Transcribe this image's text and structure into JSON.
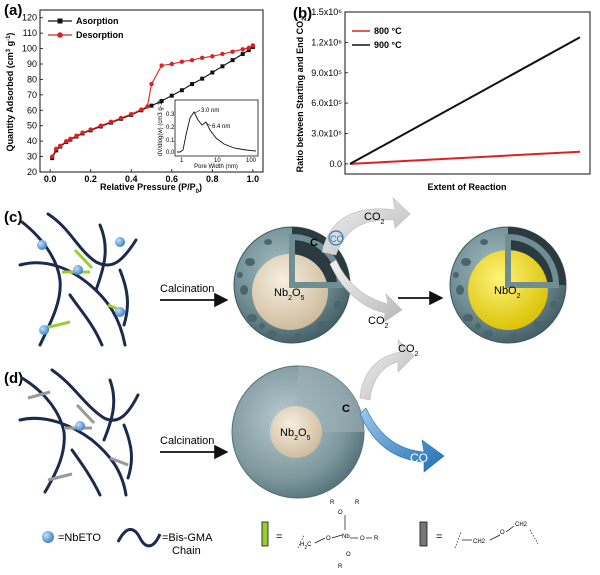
{
  "panels": {
    "a": "(a)",
    "b": "(b)",
    "c": "(c)",
    "d": "(d)"
  },
  "chart_data": [
    {
      "type": "line",
      "panel": "a",
      "xlabel": "Relative Pressure (P/P0)",
      "ylabel": "Quantity Adsorbed (cm3 g-1)",
      "xlim": [
        -0.05,
        1.05
      ],
      "ylim": [
        20,
        125
      ],
      "xticks": [
        "0.0",
        "0.2",
        "0.4",
        "0.6",
        "0.8",
        "1.0"
      ],
      "yticks": [
        "20",
        "30",
        "40",
        "50",
        "60",
        "70",
        "80",
        "90",
        "100",
        "110",
        "120"
      ],
      "legend_position": "top-left",
      "series": [
        {
          "name": "Asorption",
          "color": "#111111",
          "marker": "square",
          "x": [
            0.01,
            0.03,
            0.05,
            0.08,
            0.1,
            0.13,
            0.16,
            0.2,
            0.25,
            0.3,
            0.35,
            0.4,
            0.45,
            0.5,
            0.55,
            0.6,
            0.65,
            0.7,
            0.75,
            0.8,
            0.85,
            0.9,
            0.95,
            0.98,
            1.0
          ],
          "y": [
            29,
            34,
            36.5,
            39.5,
            41,
            43,
            45,
            47,
            49.5,
            52,
            54.5,
            57,
            60,
            63,
            66,
            69.5,
            73,
            77,
            80.5,
            84.5,
            88.5,
            92.5,
            96.5,
            99,
            101
          ]
        },
        {
          "name": "Desorption",
          "color": "#e02020",
          "marker": "circle",
          "x": [
            0.01,
            0.03,
            0.05,
            0.08,
            0.1,
            0.13,
            0.16,
            0.2,
            0.25,
            0.3,
            0.35,
            0.4,
            0.45,
            0.48,
            0.5,
            0.55,
            0.6,
            0.65,
            0.7,
            0.75,
            0.8,
            0.85,
            0.9,
            0.95,
            0.98,
            1.0
          ],
          "y": [
            30,
            35,
            37,
            40,
            41.5,
            43.5,
            45.5,
            47.5,
            50,
            52.5,
            55,
            57.5,
            60.5,
            62.5,
            77,
            89,
            90,
            91.5,
            92.5,
            94,
            95,
            96.5,
            98,
            99.5,
            100.5,
            102
          ]
        }
      ],
      "inset": {
        "xlabel": "Pore Width (nm)",
        "ylabel": "dV/dlog(w) (cm3 g-1)",
        "xticks": [
          "1",
          "10",
          "100"
        ],
        "yticks": [
          "0.0",
          "0.1",
          "0.2",
          "0.3"
        ],
        "annotations": [
          "3.0 nm",
          "6.4 nm"
        ]
      }
    },
    {
      "type": "line",
      "panel": "b",
      "xlabel": "Extent of Reaction",
      "ylabel": "Ratio between Starting and End CO2",
      "xlim": [
        0,
        1
      ],
      "ylim": [
        -0.1,
        1.5
      ],
      "yticks": [
        "0.0",
        "3.0x10⁵",
        "6.0x10⁵",
        "9.0x10⁵",
        "1.2x10⁶",
        "1.5x10⁶"
      ],
      "legend_position": "top-left",
      "series": [
        {
          "name": "800 °C",
          "color": "#e02020",
          "x": [
            0,
            1
          ],
          "y": [
            0,
            0.12
          ]
        },
        {
          "name": "900 °C",
          "color": "#111111",
          "x": [
            0,
            1
          ],
          "y": [
            0,
            1.25
          ]
        }
      ]
    }
  ],
  "scheme_c": {
    "calcination": "Calcination",
    "carbon": "C",
    "co2_top": "CO2",
    "co_label": "CO",
    "core": "Nb2O5",
    "co2_bottom": "CO2",
    "product": "NbO2"
  },
  "scheme_d": {
    "calcination": "Calcination",
    "carbon": "C",
    "core": "Nb2O5",
    "co2": "CO2",
    "co_label": "CO"
  },
  "legend": {
    "nbeto": "=NbETO",
    "chain_line1": "=Bis-GMA",
    "chain_line2": "Chain",
    "green_eq": "=",
    "gray_eq": "=",
    "green_formula": {
      "R": "R",
      "H2C": "H2C",
      "O": "O",
      "Nb": "Nb"
    },
    "gray_formula": {
      "ch2a": "CH2",
      "o": "O",
      "ch2b": "CH2"
    }
  },
  "colors": {
    "adsorption": "#111111",
    "desorption": "#e02020",
    "shell": "#6f8d93",
    "core_nb2o5": "#e6d8c0",
    "core_nbo2": "#e8d000",
    "co_arrow": "#2a7cc0",
    "nbeto_ball": "#5aa0d8",
    "chain": "#1d2a4e",
    "green_crosslink": "#9acd32"
  }
}
